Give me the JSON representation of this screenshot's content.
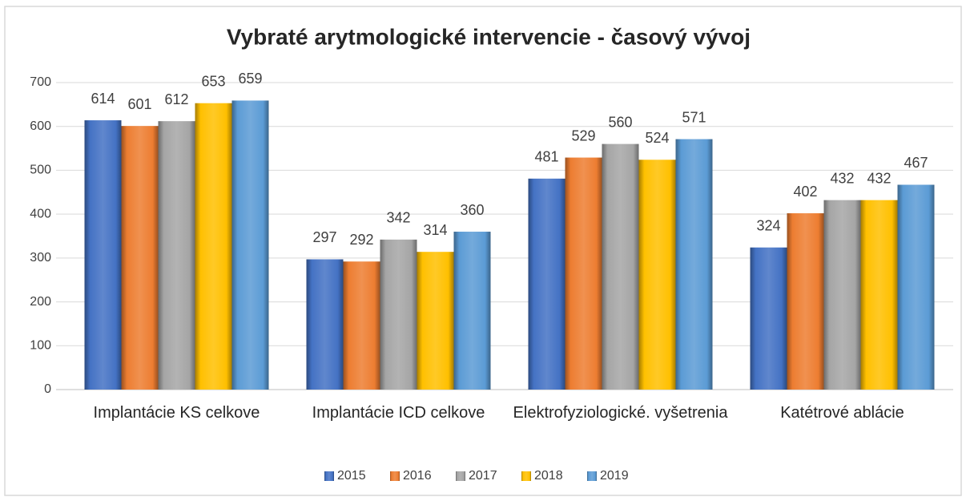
{
  "chart_data": {
    "type": "bar",
    "title": "Vybraté arytmologické intervencie - časový vývoj",
    "categories": [
      "Implantácie KS celkove",
      "Implantácie ICD celkove",
      "Elektrofyziologické. vyšetrenia",
      "Katétrové ablácie"
    ],
    "series": [
      {
        "name": "2015",
        "color": "#4472c4",
        "values": [
          614,
          297,
          481,
          324
        ]
      },
      {
        "name": "2016",
        "color": "#ed7d31",
        "values": [
          601,
          292,
          529,
          402
        ]
      },
      {
        "name": "2017",
        "color": "#a5a5a5",
        "values": [
          612,
          342,
          560,
          432
        ]
      },
      {
        "name": "2018",
        "color": "#ffc000",
        "values": [
          653,
          314,
          524,
          432
        ]
      },
      {
        "name": "2019",
        "color": "#5b9bd5",
        "values": [
          659,
          360,
          571,
          467
        ]
      }
    ],
    "ylim": [
      0,
      700
    ],
    "yticks": [
      0,
      100,
      200,
      300,
      400,
      500,
      600,
      700
    ],
    "grid": true,
    "legend": "bottom"
  }
}
